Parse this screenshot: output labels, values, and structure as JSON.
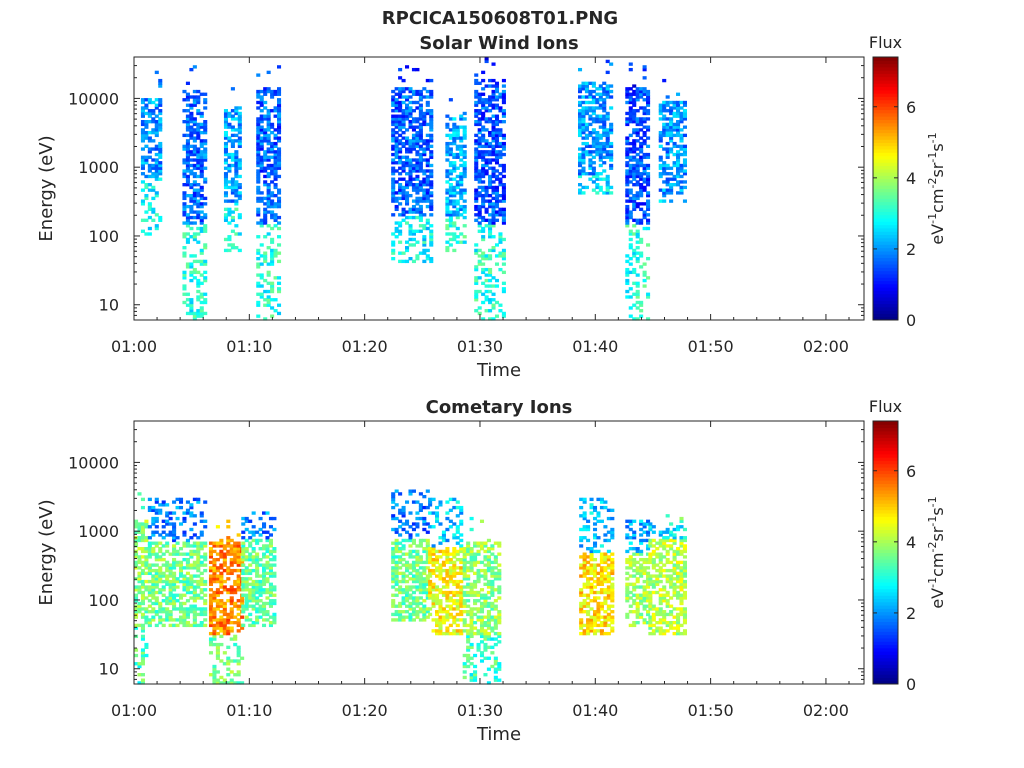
{
  "figure": {
    "title": "RPCICA150608T01.PNG"
  },
  "chart_data": [
    {
      "type": "heatmap",
      "title": "Solar Wind Ions",
      "xlabel": "Time",
      "ylabel": "Energy (eV)",
      "xticks": [
        "01:00",
        "01:10",
        "01:20",
        "01:30",
        "01:40",
        "01:50",
        "02:00"
      ],
      "xlim_minutes": [
        0,
        63.3
      ],
      "yscale": "log",
      "yticks": [
        "10",
        "100",
        "1000",
        "10000"
      ],
      "ylim": [
        6,
        40000
      ],
      "colorbar": {
        "title": "Flux",
        "label": "eV-1cm-2sr-1s-1",
        "ticks": [
          "0",
          "2",
          "4",
          "6"
        ],
        "range": [
          0,
          7.4
        ],
        "colormap": "jet"
      },
      "bursts": [
        {
          "t0": 0.6,
          "t1": 2.4,
          "core_emin": 700,
          "core_emax": 10000,
          "core_flux": 2.0,
          "low_emin": 100,
          "low_emax": 700,
          "low_flux": 2.8
        },
        {
          "t0": 4.2,
          "t1": 6.2,
          "core_emin": 150,
          "core_emax": 13000,
          "core_flux": 1.7,
          "low_emin": 6,
          "low_emax": 150,
          "low_flux": 3.0
        },
        {
          "t0": 7.8,
          "t1": 9.3,
          "core_emin": 300,
          "core_emax": 8000,
          "core_flux": 2.1,
          "low_emin": 60,
          "low_emax": 300,
          "low_flux": 2.9
        },
        {
          "t0": 10.6,
          "t1": 12.5,
          "core_emin": 150,
          "core_emax": 15000,
          "core_flux": 1.6,
          "low_emin": 6,
          "low_emax": 150,
          "low_flux": 3.0
        },
        {
          "t0": 22.3,
          "t1": 25.8,
          "core_emin": 200,
          "core_emax": 15000,
          "core_flux": 1.6,
          "low_emin": 40,
          "low_emax": 200,
          "low_flux": 2.8
        },
        {
          "t0": 27.0,
          "t1": 28.8,
          "core_emin": 200,
          "core_emax": 6000,
          "core_flux": 2.2,
          "low_emin": 60,
          "low_emax": 400,
          "low_flux": 3.1
        },
        {
          "t0": 29.5,
          "t1": 32.0,
          "core_emin": 150,
          "core_emax": 20000,
          "core_flux": 1.5,
          "low_emin": 6,
          "low_emax": 150,
          "low_flux": 3.0
        },
        {
          "t0": 38.5,
          "t1": 41.3,
          "core_emin": 800,
          "core_emax": 18000,
          "core_flux": 2.0,
          "low_emin": 400,
          "low_emax": 800,
          "low_flux": 2.6
        },
        {
          "t0": 42.6,
          "t1": 44.6,
          "core_emin": 150,
          "core_emax": 15000,
          "core_flux": 1.5,
          "low_emin": 6,
          "low_emax": 150,
          "low_flux": 3.0
        },
        {
          "t0": 45.5,
          "t1": 47.8,
          "core_emin": 400,
          "core_emax": 9000,
          "core_flux": 2.0,
          "low_emin": 300,
          "low_emax": 500,
          "low_flux": 2.5
        }
      ]
    },
    {
      "type": "heatmap",
      "title": "Cometary Ions",
      "xlabel": "Time",
      "ylabel": "Energy (eV)",
      "xticks": [
        "01:00",
        "01:10",
        "01:20",
        "01:30",
        "01:40",
        "01:50",
        "02:00"
      ],
      "xlim_minutes": [
        0,
        63.3
      ],
      "yscale": "log",
      "yticks": [
        "10",
        "100",
        "1000",
        "10000"
      ],
      "ylim": [
        6,
        40000
      ],
      "colorbar": {
        "title": "Flux",
        "label": "eV-1cm-2sr-1s-1",
        "ticks": [
          "0",
          "2",
          "4",
          "6"
        ],
        "range": [
          0,
          7.4
        ],
        "colormap": "jet"
      },
      "bursts": [
        {
          "t0": 0.0,
          "t1": 1.2,
          "core_emin": 40,
          "core_emax": 1500,
          "core_flux": 3.8,
          "low_emin": 6,
          "low_emax": 40,
          "low_flux": 3.3
        },
        {
          "t0": 1.2,
          "t1": 6.0,
          "core_emin": 40,
          "core_emax": 700,
          "core_flux": 3.6,
          "low_emin": 700,
          "low_emax": 3000,
          "low_flux": 1.8
        },
        {
          "t0": 6.5,
          "t1": 9.3,
          "core_emin": 30,
          "core_emax": 700,
          "core_flux": 5.5,
          "low_emin": 6,
          "low_emax": 30,
          "low_flux": 3.6
        },
        {
          "t0": 9.3,
          "t1": 12.2,
          "core_emin": 40,
          "core_emax": 800,
          "core_flux": 3.5,
          "low_emin": 800,
          "low_emax": 2000,
          "low_flux": 1.9
        },
        {
          "t0": 22.3,
          "t1": 25.5,
          "core_emin": 50,
          "core_emax": 800,
          "core_flux": 3.6,
          "low_emin": 800,
          "low_emax": 4000,
          "low_flux": 1.8
        },
        {
          "t0": 25.5,
          "t1": 28.5,
          "core_emin": 30,
          "core_emax": 600,
          "core_flux": 4.6,
          "low_emin": 600,
          "low_emax": 3000,
          "low_flux": 2.4
        },
        {
          "t0": 28.5,
          "t1": 31.8,
          "core_emin": 30,
          "core_emax": 700,
          "core_flux": 3.8,
          "low_emin": 6,
          "low_emax": 30,
          "low_flux": 3.2
        },
        {
          "t0": 38.6,
          "t1": 41.5,
          "core_emin": 30,
          "core_emax": 500,
          "core_flux": 4.8,
          "low_emin": 500,
          "low_emax": 3000,
          "low_flux": 2.4
        },
        {
          "t0": 42.6,
          "t1": 44.6,
          "core_emin": 40,
          "core_emax": 500,
          "core_flux": 3.9,
          "low_emin": 500,
          "low_emax": 1500,
          "low_flux": 2.2
        },
        {
          "t0": 44.6,
          "t1": 47.8,
          "core_emin": 30,
          "core_emax": 800,
          "core_flux": 4.1,
          "low_emin": 800,
          "low_emax": 1500,
          "low_flux": 2.6
        }
      ]
    }
  ]
}
